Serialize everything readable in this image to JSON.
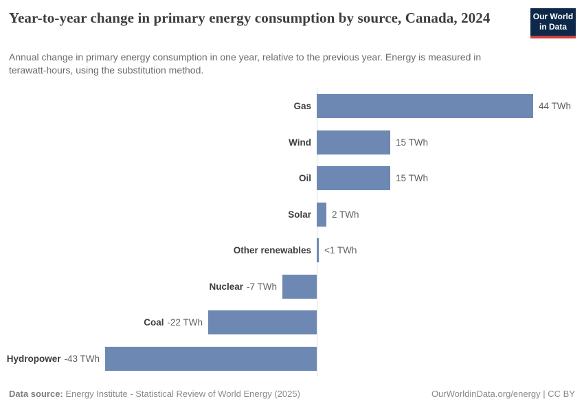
{
  "header": {
    "title": "Year-to-year change in primary energy consumption by source, Canada, 2024",
    "subtitle": "Annual change in primary energy consumption in one year, relative to the previous year. Energy is measured in terawatt-hours, using the substitution method.",
    "logo": {
      "line1": "Our World",
      "line2": "in Data"
    }
  },
  "chart_data": {
    "type": "bar",
    "orientation": "horizontal",
    "title": "Year-to-year change in primary energy consumption by source, Canada, 2024",
    "unit": "TWh",
    "categories": [
      "Gas",
      "Wind",
      "Oil",
      "Solar",
      "Other renewables",
      "Nuclear",
      "Coal",
      "Hydropower"
    ],
    "values": [
      44,
      15,
      15,
      2,
      0.4,
      -7,
      -22,
      -43
    ],
    "value_labels": [
      "44 TWh",
      "15 TWh",
      "15 TWh",
      "2 TWh",
      "<1 TWh",
      "-7 TWh",
      "-22 TWh",
      "-43 TWh"
    ],
    "xlim": [
      -43,
      44
    ],
    "grid": false,
    "legend": false,
    "bar_color": "#6e88b4",
    "axis_color": "#d9dce1"
  },
  "footer": {
    "datasource_label": "Data source:",
    "datasource_text": "Energy Institute - Statistical Review of World Energy (2025)",
    "right_text": "OurWorldinData.org/energy | CC BY"
  }
}
